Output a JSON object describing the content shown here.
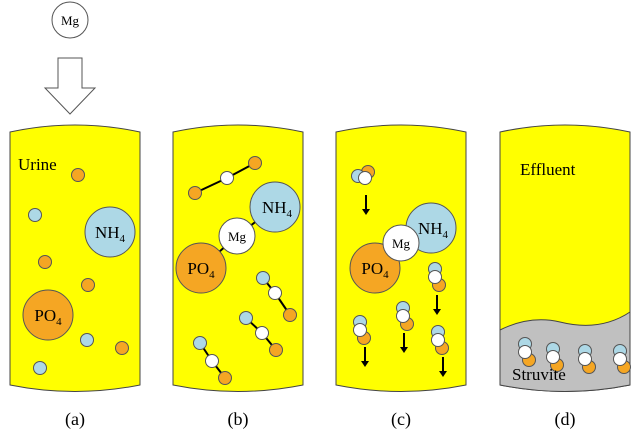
{
  "reagent": "Mg",
  "panels": [
    {
      "caption": "(a)",
      "label": "Urine",
      "nh4": {
        "main": "NH",
        "sub": "4"
      },
      "po4": {
        "main": "PO",
        "sub": "4"
      }
    },
    {
      "caption": "(b)",
      "mg": "Mg",
      "nh4": {
        "main": "NH",
        "sub": "4"
      },
      "po4": {
        "main": "PO",
        "sub": "4"
      }
    },
    {
      "caption": "(c)",
      "mg": "Mg",
      "nh4": {
        "main": "NH",
        "sub": "4"
      },
      "po4": {
        "main": "PO",
        "sub": "4"
      }
    },
    {
      "caption": "(d)",
      "label": "Effluent",
      "precipitate": "Struvite"
    }
  ]
}
